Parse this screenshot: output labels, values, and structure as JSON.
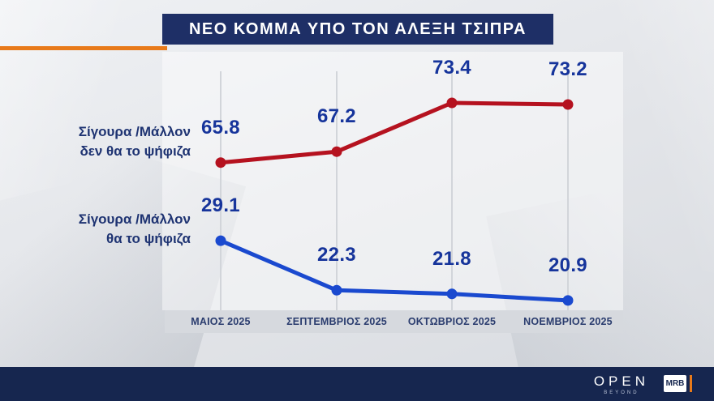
{
  "title": "ΝΕΟ ΚΟΜΜΑ ΥΠΟ ΤΟΝ ΑΛΕΞΗ ΤΣΙΠΡΑ",
  "chart_data": {
    "type": "line",
    "title": "ΝΕΟ ΚΟΜΜΑ ΥΠΟ ΤΟΝ ΑΛΕΞΗ ΤΣΙΠΡΑ",
    "categories": [
      "ΜΑΙΟΣ 2025",
      "ΣΕΠΤΕΜΒΡΙΟΣ 2025",
      "ΟΚΤΩΒΡΙΟΣ 2025",
      "ΝΟΕΜΒΡΙΟΣ 2025"
    ],
    "series": [
      {
        "name": "Σίγουρα /Μάλλον δεν θα το ψήφιζα",
        "label_lines": [
          "Σίγουρα /Μάλλον",
          "δεν θα το ψήφιζα"
        ],
        "values": [
          65.8,
          67.2,
          73.4,
          73.2
        ],
        "color": "#b5121f"
      },
      {
        "name": "Σίγουρα /Μάλλον θα το ψήφιζα",
        "label_lines": [
          "Σίγουρα /Μάλλον",
          "θα το ψήφιζα"
        ],
        "values": [
          29.1,
          22.3,
          21.8,
          20.9
        ],
        "color": "#1a49cf"
      }
    ],
    "value_label_color": "#16349b",
    "ylim": [
      0,
      100
    ],
    "grid": "vertical-only",
    "legend_position": "left"
  },
  "colors": {
    "title_bar": "#1e2f66",
    "accent_orange": "#e87a1a",
    "footer_bar": "#16264f",
    "series_no": "#b5121f",
    "series_yes": "#1a49cf"
  },
  "footer": {
    "open_logo": "OPEN",
    "open_sub": "BEYOND",
    "mrb_logo": "MRB"
  }
}
